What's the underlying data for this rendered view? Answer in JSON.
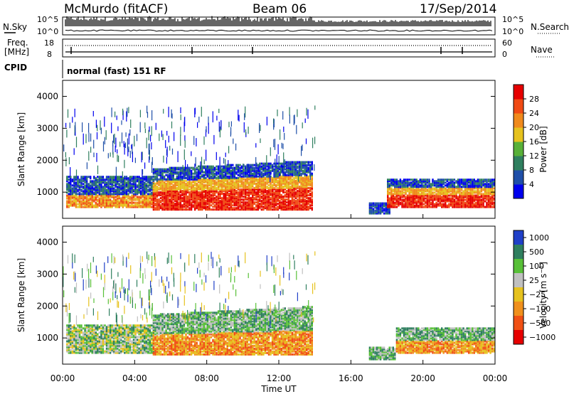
{
  "header": {
    "station": "McMurdo (fitACF)",
    "beam": "Beam 06",
    "date": "17/Sep/2014"
  },
  "status_panels": {
    "noise_label_left": "N.Sky",
    "noise_label_right": "N.Search",
    "noise_ticks_left": [
      "10^5",
      "10^0"
    ],
    "noise_ticks_right": [
      "10^5",
      "10^0"
    ],
    "freq_label_line1": "Freq.",
    "freq_label_line2": "[MHz]",
    "freq_ticks": [
      "18",
      "8"
    ],
    "nave_label": "Nave",
    "nave_ticks": [
      "60",
      "0"
    ],
    "cpid_label": "CPID",
    "cpid_value": "normal (fast) 151 RF"
  },
  "x_axis": {
    "label": "Time UT",
    "ticks": [
      "00:00",
      "04:00",
      "08:00",
      "12:00",
      "16:00",
      "20:00",
      "00:00"
    ]
  },
  "chart_data": [
    {
      "type": "heatmap",
      "title": "",
      "xlabel": "Time UT",
      "ylabel": "Slant Range [km]",
      "xlim": [
        0,
        24
      ],
      "ylim": [
        180,
        4500
      ],
      "y_ticks": [
        "1000",
        "2000",
        "3000",
        "4000"
      ],
      "colorbar": {
        "label": "Power [dB]",
        "ticks": [
          "4",
          "8",
          "12",
          "16",
          "20",
          "24",
          "28"
        ],
        "colors": [
          "#0000ee",
          "#1f4fa8",
          "#2f7f5f",
          "#58b038",
          "#e6c21e",
          "#f08a1c",
          "#f04a14",
          "#e60000"
        ]
      },
      "regions": [
        {
          "t": [
            0.2,
            5.0
          ],
          "r": [
            500,
            1450
          ],
          "level": "mixed"
        },
        {
          "t": [
            5.0,
            13.8
          ],
          "r": [
            420,
            1700
          ],
          "level": "strong"
        },
        {
          "t": [
            17.0,
            18.2
          ],
          "r": [
            300,
            650
          ],
          "level": "weak"
        },
        {
          "t": [
            18.0,
            24.0
          ],
          "r": [
            500,
            1400
          ],
          "level": "strong"
        }
      ]
    },
    {
      "type": "heatmap",
      "title": "",
      "xlabel": "Time UT",
      "ylabel": "Slant Range [km]",
      "xlim": [
        0,
        24
      ],
      "ylim": [
        180,
        4500
      ],
      "y_ticks": [
        "1000",
        "2000",
        "3000",
        "4000"
      ],
      "colorbar": {
        "label": "Velocity [m s^-1]",
        "ticks": [
          "1000",
          "500",
          "100",
          "25",
          "−25",
          "−100",
          "−500",
          "−1000"
        ],
        "colors": [
          "#2040c8",
          "#2f7f5f",
          "#58c038",
          "#c0c0c0",
          "#e6c21e",
          "#f0901c",
          "#f05014",
          "#e60000"
        ]
      },
      "regions": [
        {
          "t": [
            0.2,
            5.0
          ],
          "r": [
            500,
            1400
          ],
          "level": "mixed"
        },
        {
          "t": [
            5.0,
            13.8
          ],
          "r": [
            450,
            1700
          ],
          "level": "negative"
        },
        {
          "t": [
            17.0,
            18.5
          ],
          "r": [
            300,
            700
          ],
          "level": "weak"
        },
        {
          "t": [
            18.5,
            24.0
          ],
          "r": [
            500,
            1300
          ],
          "level": "negative"
        }
      ]
    }
  ]
}
